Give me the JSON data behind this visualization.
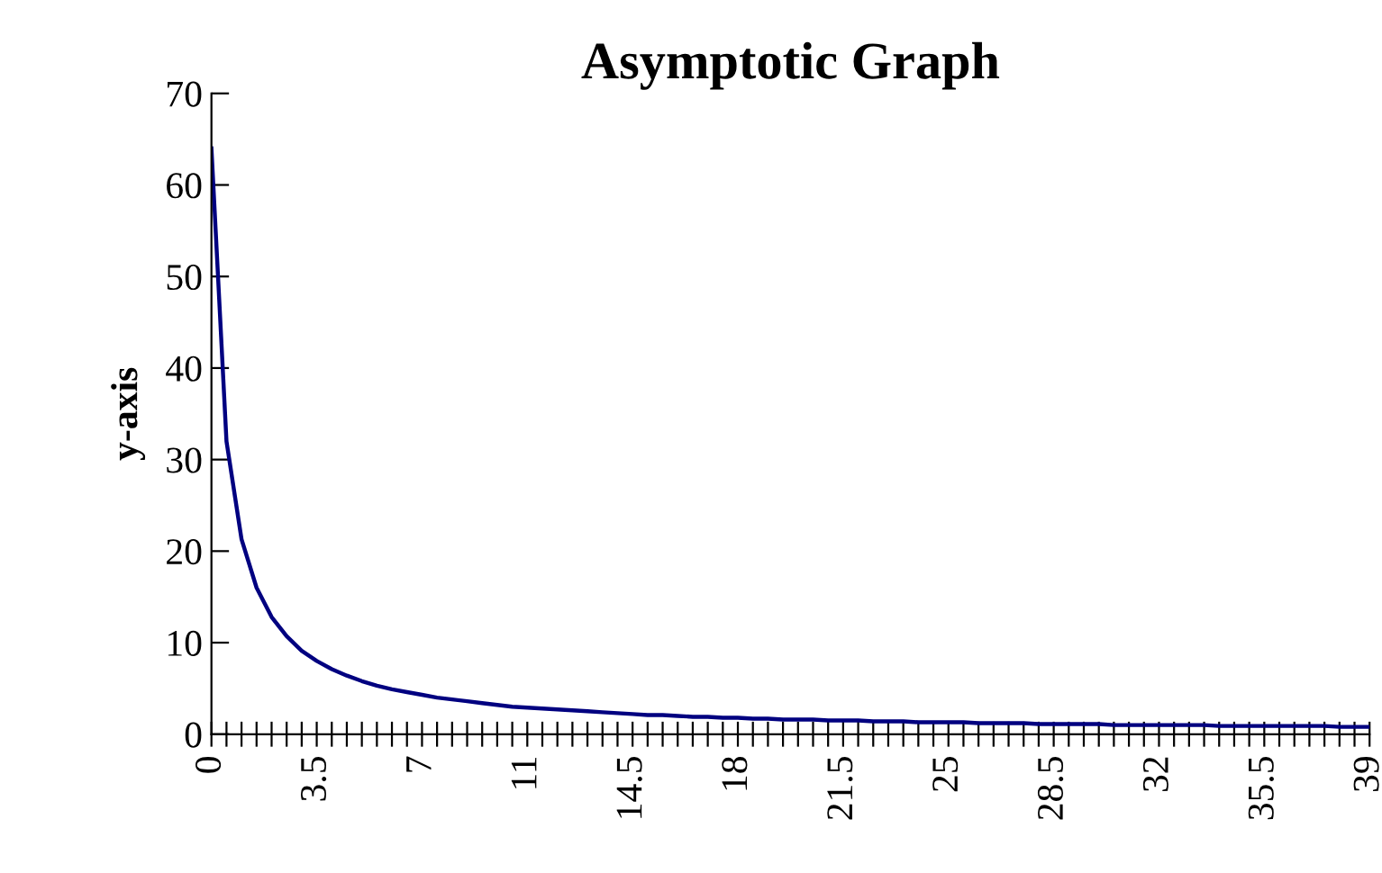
{
  "chart_data": {
    "type": "line",
    "title": "Asymptotic Graph",
    "ylabel": "y-axis",
    "categories": [
      "0",
      null,
      null,
      null,
      null,
      null,
      null,
      "3.5",
      null,
      null,
      null,
      null,
      null,
      null,
      "7",
      null,
      null,
      null,
      null,
      null,
      null,
      "11",
      null,
      null,
      null,
      null,
      null,
      null,
      "14.5",
      null,
      null,
      null,
      null,
      null,
      null,
      "18",
      null,
      null,
      null,
      null,
      null,
      null,
      "21.5",
      null,
      null,
      null,
      null,
      null,
      null,
      "25",
      null,
      null,
      null,
      null,
      null,
      null,
      "28.5",
      null,
      null,
      null,
      null,
      null,
      null,
      "32",
      null,
      null,
      null,
      null,
      null,
      null,
      "35.5",
      null,
      null,
      null,
      null,
      null,
      null,
      "39"
    ],
    "series": [
      {
        "color": "#000080",
        "values": [
          64,
          32,
          21.3,
          16,
          12.8,
          10.7,
          9.1,
          8,
          7.1,
          6.4,
          5.8,
          5.3,
          4.9,
          4.6,
          4.3,
          4,
          3.8,
          3.6,
          3.4,
          3.2,
          3,
          2.9,
          2.8,
          2.7,
          2.6,
          2.5,
          2.4,
          2.3,
          2.2,
          2.1,
          2.1,
          2,
          1.9,
          1.9,
          1.8,
          1.8,
          1.7,
          1.7,
          1.6,
          1.6,
          1.6,
          1.5,
          1.5,
          1.5,
          1.4,
          1.4,
          1.4,
          1.3,
          1.3,
          1.3,
          1.3,
          1.2,
          1.2,
          1.2,
          1.2,
          1.1,
          1.1,
          1.1,
          1.1,
          1.1,
          1,
          1,
          1,
          1,
          1,
          1,
          1,
          0.9,
          0.9,
          0.9,
          0.9,
          0.9,
          0.9,
          0.9,
          0.9,
          0.8,
          0.8,
          0.8
        ]
      }
    ],
    "ylim": [
      0,
      70
    ],
    "yticks": [
      0,
      10,
      20,
      30,
      40,
      50,
      60,
      70
    ],
    "grid": false,
    "marker": "none",
    "line_style": "solid"
  }
}
